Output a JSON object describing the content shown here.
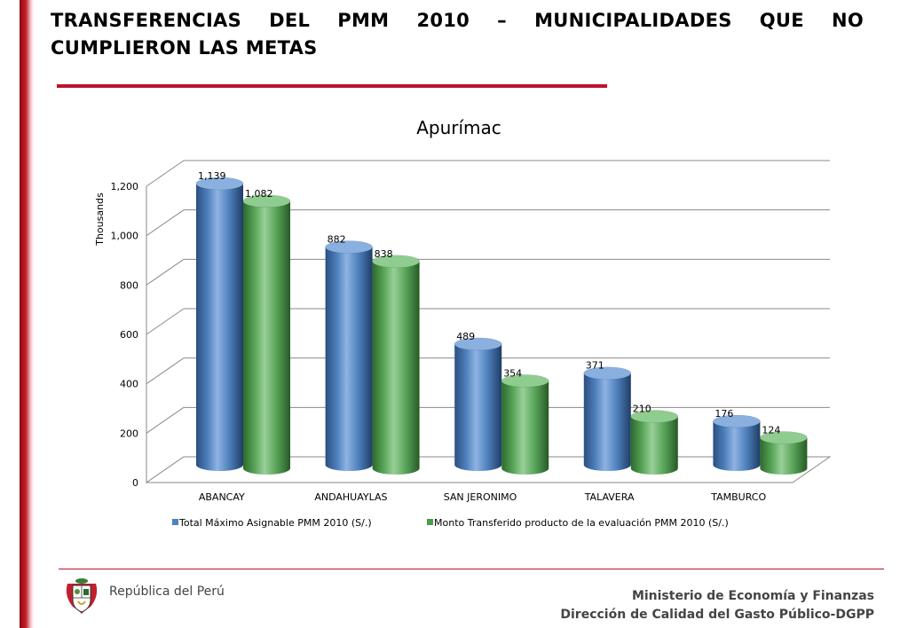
{
  "slide": {
    "title": "TRANSFERENCIAS DEL PMM 2010 – MUNICIPALIDADES QUE NO CUMPLIERON LAS METAS",
    "accent_color": "#c0102a"
  },
  "chart_data": {
    "type": "bar",
    "style": "3d-cylinder",
    "title": "Apurímac",
    "xlabel": "",
    "ylabel": "Thousands",
    "ylim": [
      0,
      1200
    ],
    "yticks": [
      0,
      200,
      400,
      600,
      800,
      1000,
      1200
    ],
    "ytick_labels": [
      "0",
      "200",
      "400",
      "600",
      "800",
      "1,000",
      "1,200"
    ],
    "grid": true,
    "legend_position": "bottom",
    "categories": [
      "ABANCAY",
      "ANDAHUAYLAS",
      "SAN JERONIMO",
      "TALAVERA",
      "TAMBURCO"
    ],
    "series": [
      {
        "name": "Total Máximo Asignable PMM 2010 (S/.)",
        "color": "#4f81bd",
        "values": [
          1139,
          882,
          489,
          371,
          176
        ],
        "labels": [
          "1,139",
          "882",
          "489",
          "371",
          "176"
        ]
      },
      {
        "name": "Monto Transferido producto de la evaluación PMM 2010 (S/.)",
        "color": "#4e9a4e",
        "values": [
          1082,
          838,
          354,
          210,
          124
        ],
        "labels": [
          "1,082",
          "838",
          "354",
          "210",
          "124"
        ]
      }
    ]
  },
  "footer": {
    "republic": "República del Perú",
    "ministry": "Ministerio de Economía y Finanzas",
    "directorate": "Dirección de Calidad del Gasto Público-DGPP"
  }
}
